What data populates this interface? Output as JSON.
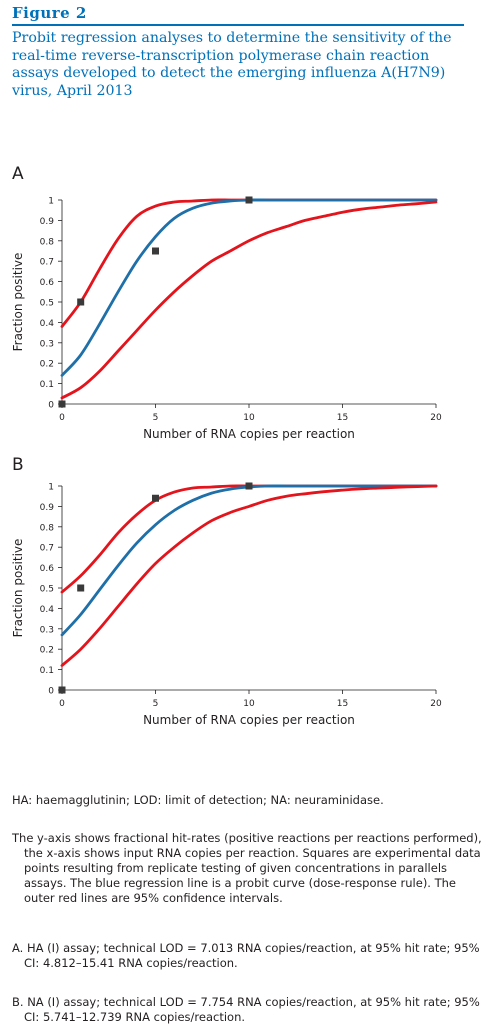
{
  "figure_label": "Figure 2",
  "caption": "Probit regression analyses to determine the sensitivity of the real-time reverse-transcription polymerase chain reaction assays developed to detect the emerging influenza A(H7N9) virus, April 2013",
  "colors": {
    "accent": "#0071b9",
    "regression": "#1f6fa8",
    "ci": "#e3141c",
    "points": "#3a3a3a"
  },
  "chart_data": [
    {
      "type": "line",
      "panel": "A",
      "xlabel": "Number of RNA copies per reaction",
      "ylabel": "Fraction positive",
      "xlim": [
        0,
        20
      ],
      "ylim": [
        0,
        1
      ],
      "xticks": [
        0,
        5,
        10,
        15,
        20
      ],
      "yticks": [
        0,
        0.1,
        0.2,
        0.3,
        0.4,
        0.5,
        0.6,
        0.7,
        0.8,
        0.9,
        1
      ],
      "grid": false,
      "x": [
        0,
        1,
        2,
        3,
        4,
        5,
        6,
        7,
        8,
        9,
        10,
        11,
        12,
        13,
        14,
        15,
        16,
        17,
        18,
        19,
        20
      ],
      "series": [
        {
          "role": "ci-upper",
          "values": [
            0.38,
            0.5,
            0.66,
            0.81,
            0.92,
            0.97,
            0.99,
            0.995,
            1,
            1,
            1,
            1,
            1,
            1,
            1,
            1,
            1,
            1,
            1,
            1,
            1
          ]
        },
        {
          "role": "regression",
          "values": [
            0.14,
            0.24,
            0.39,
            0.55,
            0.7,
            0.82,
            0.91,
            0.96,
            0.985,
            0.995,
            1,
            1,
            1,
            1,
            1,
            1,
            1,
            1,
            1,
            1,
            1
          ]
        },
        {
          "role": "ci-lower",
          "values": [
            0.03,
            0.08,
            0.16,
            0.26,
            0.36,
            0.46,
            0.55,
            0.63,
            0.7,
            0.75,
            0.8,
            0.84,
            0.87,
            0.9,
            0.92,
            0.94,
            0.955,
            0.965,
            0.975,
            0.982,
            0.99
          ]
        }
      ],
      "points": [
        {
          "x": 0,
          "y": 0
        },
        {
          "x": 1,
          "y": 0.5
        },
        {
          "x": 5,
          "y": 0.75
        },
        {
          "x": 10,
          "y": 1
        }
      ]
    },
    {
      "type": "line",
      "panel": "B",
      "xlabel": "Number of RNA copies per reaction",
      "ylabel": "Fraction positive",
      "xlim": [
        0,
        20
      ],
      "ylim": [
        0,
        1
      ],
      "xticks": [
        0,
        5,
        10,
        15,
        20
      ],
      "yticks": [
        0,
        0.1,
        0.2,
        0.3,
        0.4,
        0.5,
        0.6,
        0.7,
        0.8,
        0.9,
        1
      ],
      "grid": false,
      "x": [
        0,
        1,
        2,
        3,
        4,
        5,
        6,
        7,
        8,
        9,
        10,
        11,
        12,
        13,
        14,
        15,
        16,
        17,
        18,
        19,
        20
      ],
      "series": [
        {
          "role": "ci-upper",
          "values": [
            0.48,
            0.56,
            0.66,
            0.77,
            0.86,
            0.93,
            0.97,
            0.99,
            0.995,
            1,
            1,
            1,
            1,
            1,
            1,
            1,
            1,
            1,
            1,
            1,
            1
          ]
        },
        {
          "role": "regression",
          "values": [
            0.27,
            0.37,
            0.49,
            0.61,
            0.72,
            0.81,
            0.88,
            0.93,
            0.965,
            0.985,
            0.995,
            1,
            1,
            1,
            1,
            1,
            1,
            1,
            1,
            1,
            1
          ]
        },
        {
          "role": "ci-lower",
          "values": [
            0.12,
            0.2,
            0.3,
            0.41,
            0.52,
            0.62,
            0.7,
            0.77,
            0.83,
            0.87,
            0.9,
            0.93,
            0.95,
            0.962,
            0.972,
            0.98,
            0.986,
            0.99,
            0.994,
            0.997,
            1
          ]
        }
      ],
      "points": [
        {
          "x": 0,
          "y": 0
        },
        {
          "x": 1,
          "y": 0.5
        },
        {
          "x": 5,
          "y": 0.94
        },
        {
          "x": 10,
          "y": 1
        }
      ]
    }
  ],
  "notes": {
    "abbreviations": "HA: haemagglutinin; LOD: limit of detection; NA: neuraminidase.",
    "description": "The y-axis shows fractional hit-rates (positive reactions per reactions performed), the x-axis shows input RNA copies per reaction. Squares are experimental data points resulting from replicate testing of given concentrations in parallels assays. The blue regression line is a probit curve (dose-response rule). The outer red lines are 95% confidence intervals.",
    "note_a": "A. HA (I) assay; technical LOD = 7.013 RNA copies/reaction, at 95% hit rate; 95% CI: 4.812–15.41 RNA copies/reaction.",
    "note_b": "B. NA (I) assay; technical LOD = 7.754 RNA copies/reaction, at 95% hit rate; 95% CI: 5.741–12.739 RNA copies/reaction."
  }
}
